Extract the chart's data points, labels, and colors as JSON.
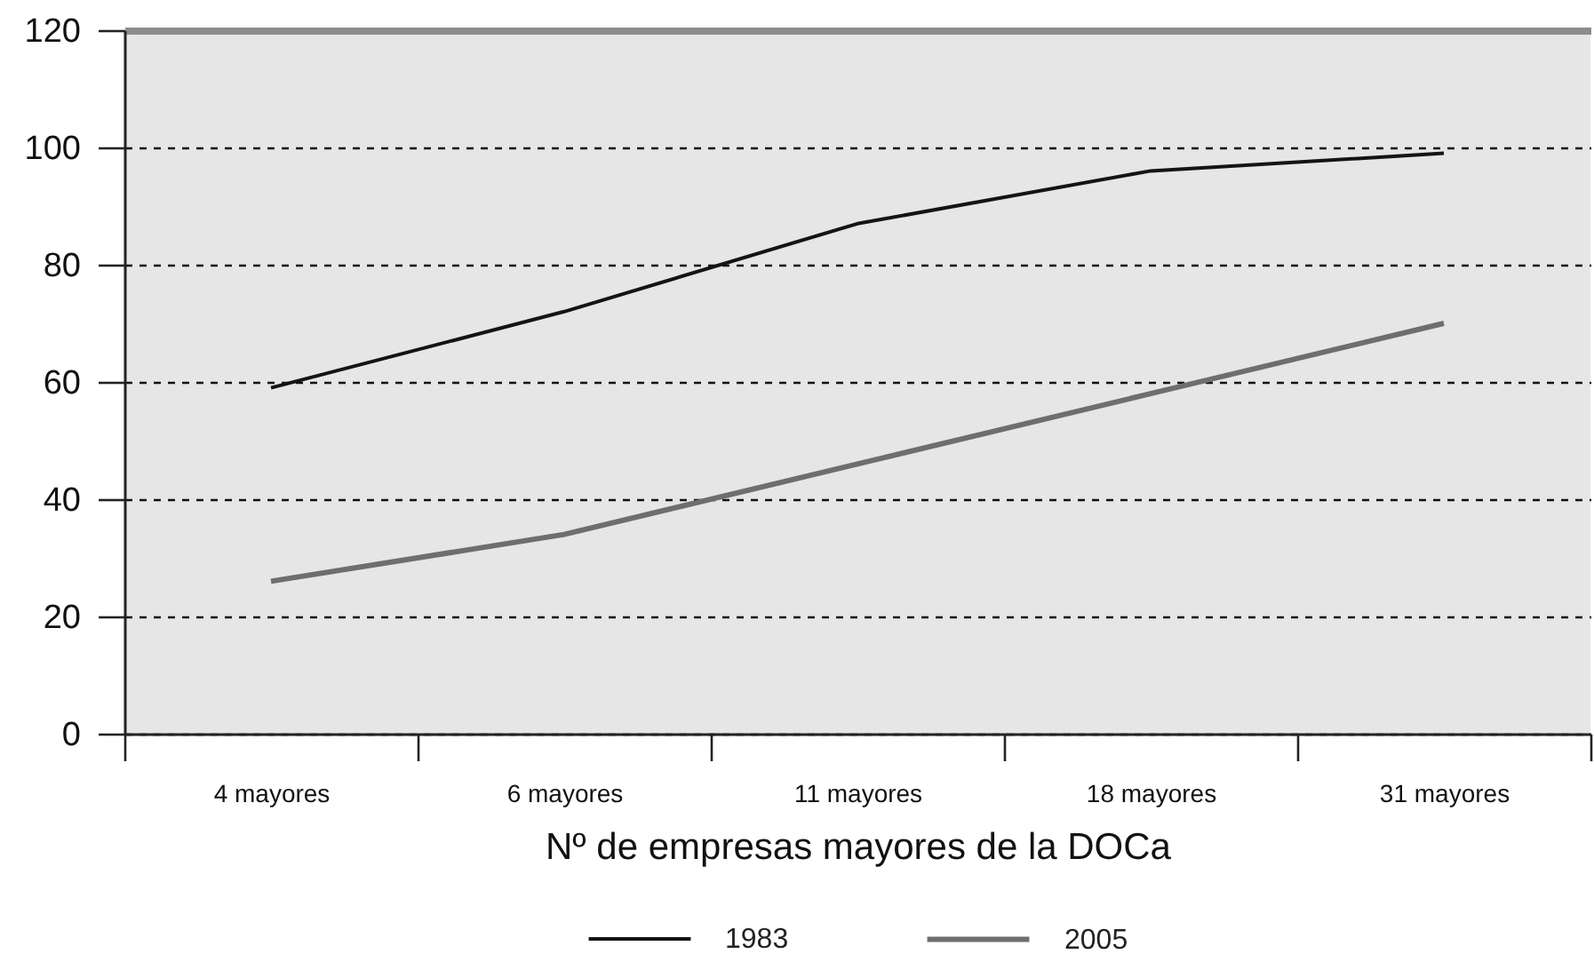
{
  "chart_data": {
    "type": "line",
    "xlabel": "Nº de empresas mayores de la DOCa",
    "categories": [
      "4 mayores",
      "6 mayores",
      "11 mayores",
      "18 mayores",
      "31 mayores"
    ],
    "series": [
      {
        "name": "1983",
        "color": "#141414",
        "values": [
          59,
          72,
          87,
          96,
          99
        ]
      },
      {
        "name": "2005",
        "color": "#6e6e6e",
        "values": [
          26,
          34,
          46,
          58,
          70
        ]
      }
    ],
    "ylim": [
      0,
      120
    ],
    "yticks": [
      0,
      20,
      40,
      60,
      80,
      100,
      120
    ],
    "grid": "y",
    "legend": "bottom",
    "marker": "none",
    "line_style": "solid"
  }
}
